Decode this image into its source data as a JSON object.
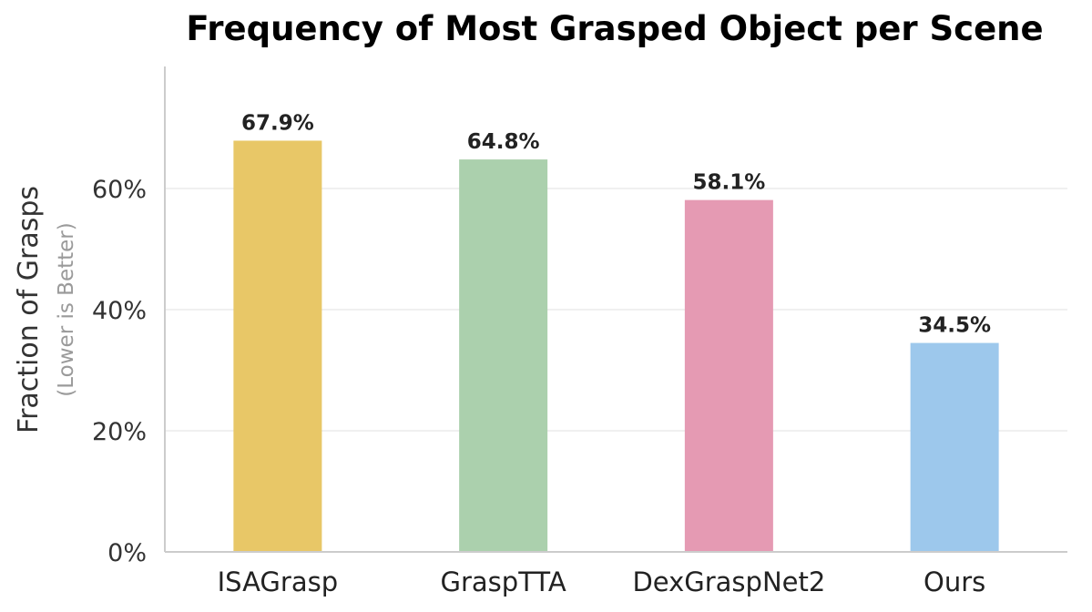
{
  "chart_data": {
    "type": "bar",
    "title": "Frequency of Most Grasped Object per Scene",
    "ylabel": "Fraction of Grasps",
    "ylabel_note": "(Lower is Better)",
    "xlabel": "",
    "categories": [
      "ISAGrasp",
      "GraspTTA",
      "DexGraspNet2",
      "Ours"
    ],
    "values": [
      67.9,
      64.8,
      58.1,
      34.5
    ],
    "data_labels": [
      "67.9%",
      "64.8%",
      "58.1%",
      "34.5%"
    ],
    "colors": [
      "#e8c767",
      "#abd0ad",
      "#e59ab3",
      "#9dc8ec"
    ],
    "ylim": [
      0,
      80
    ],
    "yticks": [
      0,
      20,
      40,
      60
    ],
    "ytick_labels": [
      "0%",
      "20%",
      "40%",
      "60%"
    ],
    "grid": true
  }
}
